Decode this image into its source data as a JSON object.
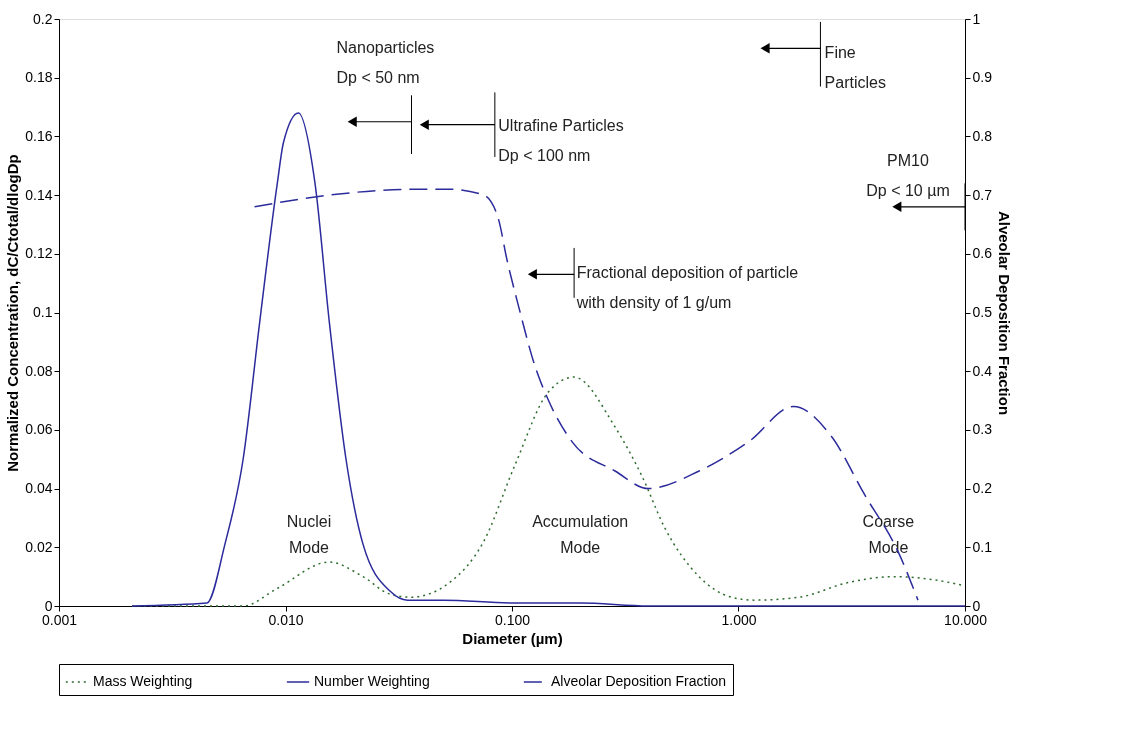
{
  "chart_data": {
    "type": "line",
    "xlabel": "Diameter (µm)",
    "ylabel": "Normalized Concentration, dC/Ctotal/dlogDp",
    "y2label": "Alveolar Deposition Fraction",
    "log": "x",
    "grid": false,
    "legend": "bottom",
    "marker": "none",
    "xlim": [
      0.001,
      10
    ],
    "xticks": [
      {
        "value": 0.001,
        "label": "0.001"
      },
      {
        "value": 0.01,
        "label": "0.010"
      },
      {
        "value": 0.1,
        "label": "0.100"
      },
      {
        "value": 1,
        "label": "1.000"
      },
      {
        "value": 10,
        "label": "10.000"
      }
    ],
    "ylim": [
      0,
      0.2
    ],
    "yticks": [
      0,
      0.02,
      0.04,
      0.06,
      0.08,
      0.1,
      0.12,
      0.14,
      0.16,
      0.18,
      0.2
    ],
    "y2lim": [
      0,
      1
    ],
    "y2ticks": [
      0,
      0.1,
      0.2,
      0.3,
      0.4,
      0.5,
      0.6,
      0.7,
      0.8,
      0.9,
      1
    ],
    "series": [
      {
        "name": "Mass Weighting",
        "color": "#2e6b2e",
        "line_style": "dotted",
        "x": [
          0.0021,
          0.0065,
          0.0092,
          0.0156,
          0.022,
          0.029,
          0.036,
          0.053,
          0.075,
          0.103,
          0.145,
          0.188,
          0.285,
          0.376,
          0.47,
          0.67,
          0.93,
          1.17,
          1.85,
          3.05,
          4.9,
          7.2,
          9.8
        ],
        "values": [
          0,
          0,
          0.006,
          0.015,
          0.01,
          0.004,
          0.003,
          0.008,
          0.022,
          0.048,
          0.073,
          0.078,
          0.061,
          0.044,
          0.027,
          0.01,
          0.003,
          0.002,
          0.003,
          0.008,
          0.01,
          0.009,
          0.007
        ]
      },
      {
        "name": "Number Weighting",
        "color": "#2b2b9c",
        "line_style": "solid",
        "x": [
          0.0021,
          0.0045,
          0.0054,
          0.0065,
          0.0077,
          0.0092,
          0.0098,
          0.0114,
          0.0135,
          0.0156,
          0.0185,
          0.022,
          0.029,
          0.0346,
          0.05,
          0.1,
          0.2,
          0.4,
          1,
          10
        ],
        "values": [
          0,
          0.001,
          0.021,
          0.05,
          0.097,
          0.144,
          0.158,
          0.168,
          0.144,
          0.097,
          0.05,
          0.021,
          0.005,
          0.002,
          0.002,
          0.001,
          0.001,
          0,
          0,
          0
        ]
      },
      {
        "name": "Alveolar Deposition Fraction",
        "color": "#2b2b9c",
        "line_style": "dashed",
        "axis": "y2",
        "x": [
          0.0073,
          0.0156,
          0.037,
          0.053,
          0.075,
          0.087,
          0.095,
          0.107,
          0.126,
          0.145,
          0.184,
          0.285,
          0.4,
          0.67,
          1.11,
          1.75,
          2.56,
          3.6,
          5.1,
          6.2
        ],
        "values": [
          0.68,
          0.7,
          0.71,
          0.71,
          0.7,
          0.66,
          0.59,
          0.51,
          0.41,
          0.35,
          0.28,
          0.23,
          0.2,
          0.23,
          0.28,
          0.34,
          0.29,
          0.19,
          0.09,
          0.01
        ]
      }
    ],
    "ref_lines": [
      {
        "axis": "x",
        "value": 0.036,
        "label": "Nanoparticles\nDp < 50 nm",
        "color": "#000000"
      },
      {
        "axis": "x",
        "value": 0.084,
        "label": "Ultrafine Particles\nDp < 100 nm",
        "color": "#000000"
      },
      {
        "axis": "x",
        "value": 2.3,
        "label": "Fine\nParticles",
        "color": "#000000"
      },
      {
        "axis": "x",
        "value": 10,
        "label": "PM10\nDp < 10 µm",
        "color": "#000000"
      },
      {
        "axis": "x",
        "value": 0.188,
        "label": "Fractional deposition of particle\nwith density of 1 g/um",
        "color": "#000000"
      }
    ],
    "annotations": [
      "Nuclei\nMode",
      "Accumulation\nMode",
      "Coarse\nMode"
    ]
  }
}
